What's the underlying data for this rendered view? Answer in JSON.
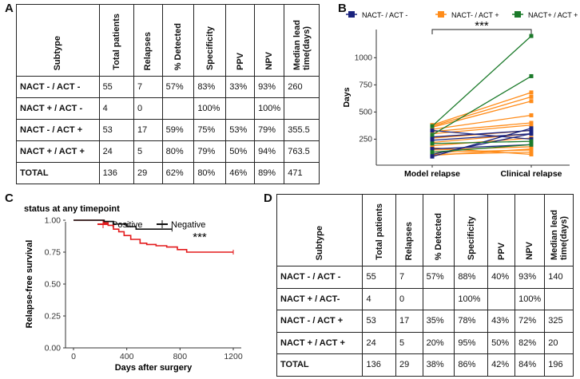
{
  "panels": {
    "A": "A",
    "B": "B",
    "C": "C",
    "D": "D"
  },
  "tableA": {
    "headers": [
      "Subtype",
      "Total patients",
      "Relapses",
      "% Detected",
      "Specificity",
      "PPV",
      "NPV",
      "Median lead time(days)"
    ],
    "rows": [
      [
        "NACT - / ACT -",
        "55",
        "7",
        "57%",
        "83%",
        "33%",
        "93%",
        "260"
      ],
      [
        "NACT + / ACT  -",
        "4",
        "0",
        "",
        "100%",
        "",
        "100%",
        ""
      ],
      [
        "NACT - / ACT +",
        "53",
        "17",
        "59%",
        "75%",
        "53%",
        "79%",
        "355.5"
      ],
      [
        "NACT + / ACT +",
        "24",
        "5",
        "80%",
        "79%",
        "50%",
        "94%",
        "763.5"
      ],
      [
        "TOTAL",
        "136",
        "29",
        "62%",
        "80%",
        "46%",
        "89%",
        "471"
      ]
    ]
  },
  "tableD": {
    "headers": [
      "Subtype",
      "Total patients",
      "Relapses",
      "% Detected",
      "Specificity",
      "PPV",
      "NPV",
      "Median lead time(days)"
    ],
    "rows": [
      [
        "NACT - / ACT -",
        "55",
        "7",
        "57%",
        "88%",
        "40%",
        "93%",
        "140"
      ],
      [
        "NACT + / ACT-",
        "4",
        "0",
        "",
        "100%",
        "",
        "100%",
        ""
      ],
      [
        "NACT - / ACT +",
        "53",
        "17",
        "35%",
        "78%",
        "43%",
        "72%",
        "325"
      ],
      [
        "NACT + / ACT +",
        "24",
        "5",
        "20%",
        "95%",
        "50%",
        "82%",
        "20"
      ],
      [
        "TOTAL",
        "136",
        "29",
        "38%",
        "86%",
        "42%",
        "84%",
        "196"
      ]
    ]
  },
  "chart_data": [
    {
      "id": "B",
      "type": "line",
      "ylabel": "Days",
      "xlabel": "",
      "categories": [
        "Model relapse",
        "Clinical relapse"
      ],
      "yticks": [
        250,
        500,
        750,
        1000
      ],
      "ylim": [
        40,
        1230
      ],
      "significance": "***",
      "legend": [
        {
          "name": "NACT- / ACT -",
          "color": "#1a237e"
        },
        {
          "name": "NACT- / ACT +",
          "color": "#ff8c1a"
        },
        {
          "name": "NACT+ / ACT +",
          "color": "#1b7a2a"
        }
      ],
      "series": [
        {
          "group": 0,
          "values": [
            90,
            350
          ]
        },
        {
          "group": 0,
          "values": [
            110,
            300
          ]
        },
        {
          "group": 0,
          "values": [
            330,
            250
          ]
        },
        {
          "group": 0,
          "values": [
            270,
            330
          ]
        },
        {
          "group": 0,
          "values": [
            160,
            200
          ]
        },
        {
          "group": 0,
          "values": [
            240,
            300
          ]
        },
        {
          "group": 1,
          "values": [
            380,
            680
          ]
        },
        {
          "group": 1,
          "values": [
            370,
            640
          ]
        },
        {
          "group": 1,
          "values": [
            360,
            600
          ]
        },
        {
          "group": 1,
          "values": [
            340,
            470
          ]
        },
        {
          "group": 1,
          "values": [
            320,
            400
          ]
        },
        {
          "group": 1,
          "values": [
            300,
            380
          ]
        },
        {
          "group": 1,
          "values": [
            260,
            330
          ]
        },
        {
          "group": 1,
          "values": [
            220,
            300
          ]
        },
        {
          "group": 1,
          "values": [
            190,
            260
          ]
        },
        {
          "group": 1,
          "values": [
            150,
            180
          ]
        },
        {
          "group": 1,
          "values": [
            130,
            150
          ]
        },
        {
          "group": 1,
          "values": [
            110,
            130
          ]
        },
        {
          "group": 1,
          "values": [
            100,
            160
          ]
        },
        {
          "group": 1,
          "values": [
            170,
            110
          ]
        },
        {
          "group": 2,
          "values": [
            370,
            1200
          ]
        },
        {
          "group": 2,
          "values": [
            290,
            830
          ]
        },
        {
          "group": 2,
          "values": [
            210,
            230
          ]
        },
        {
          "group": 2,
          "values": [
            130,
            200
          ]
        }
      ]
    },
    {
      "id": "C",
      "type": "line",
      "title": "status at any timepoint",
      "xlabel": "Days after surgery",
      "ylabel": "Relapse-free survival",
      "xticks": [
        0,
        400,
        800,
        1200
      ],
      "yticks": [
        0.0,
        0.25,
        0.5,
        0.75,
        1.0
      ],
      "ytick_labels": [
        "0.00",
        "0.25",
        "0.50",
        "0.75",
        "1.00"
      ],
      "xlim": [
        -60,
        1260
      ],
      "ylim": [
        0,
        1.05
      ],
      "significance": "***",
      "legend": [
        {
          "name": "Positive",
          "color": "#e31a1c"
        },
        {
          "name": "Negative",
          "color": "#111111"
        }
      ],
      "series": [
        {
          "name": "Positive",
          "color": "#e31a1c",
          "x": [
            0,
            200,
            230,
            260,
            300,
            340,
            380,
            430,
            500,
            550,
            620,
            700,
            780,
            850,
            1200
          ],
          "y": [
            1.0,
            1.0,
            0.98,
            0.96,
            0.93,
            0.91,
            0.88,
            0.85,
            0.82,
            0.81,
            0.8,
            0.79,
            0.77,
            0.75,
            0.75
          ]
        },
        {
          "name": "Negative",
          "color": "#111111",
          "x": [
            0,
            150,
            230,
            300,
            400,
            470,
            740
          ],
          "y": [
            1.0,
            1.0,
            0.99,
            0.97,
            0.95,
            0.93,
            0.93
          ]
        }
      ]
    }
  ]
}
